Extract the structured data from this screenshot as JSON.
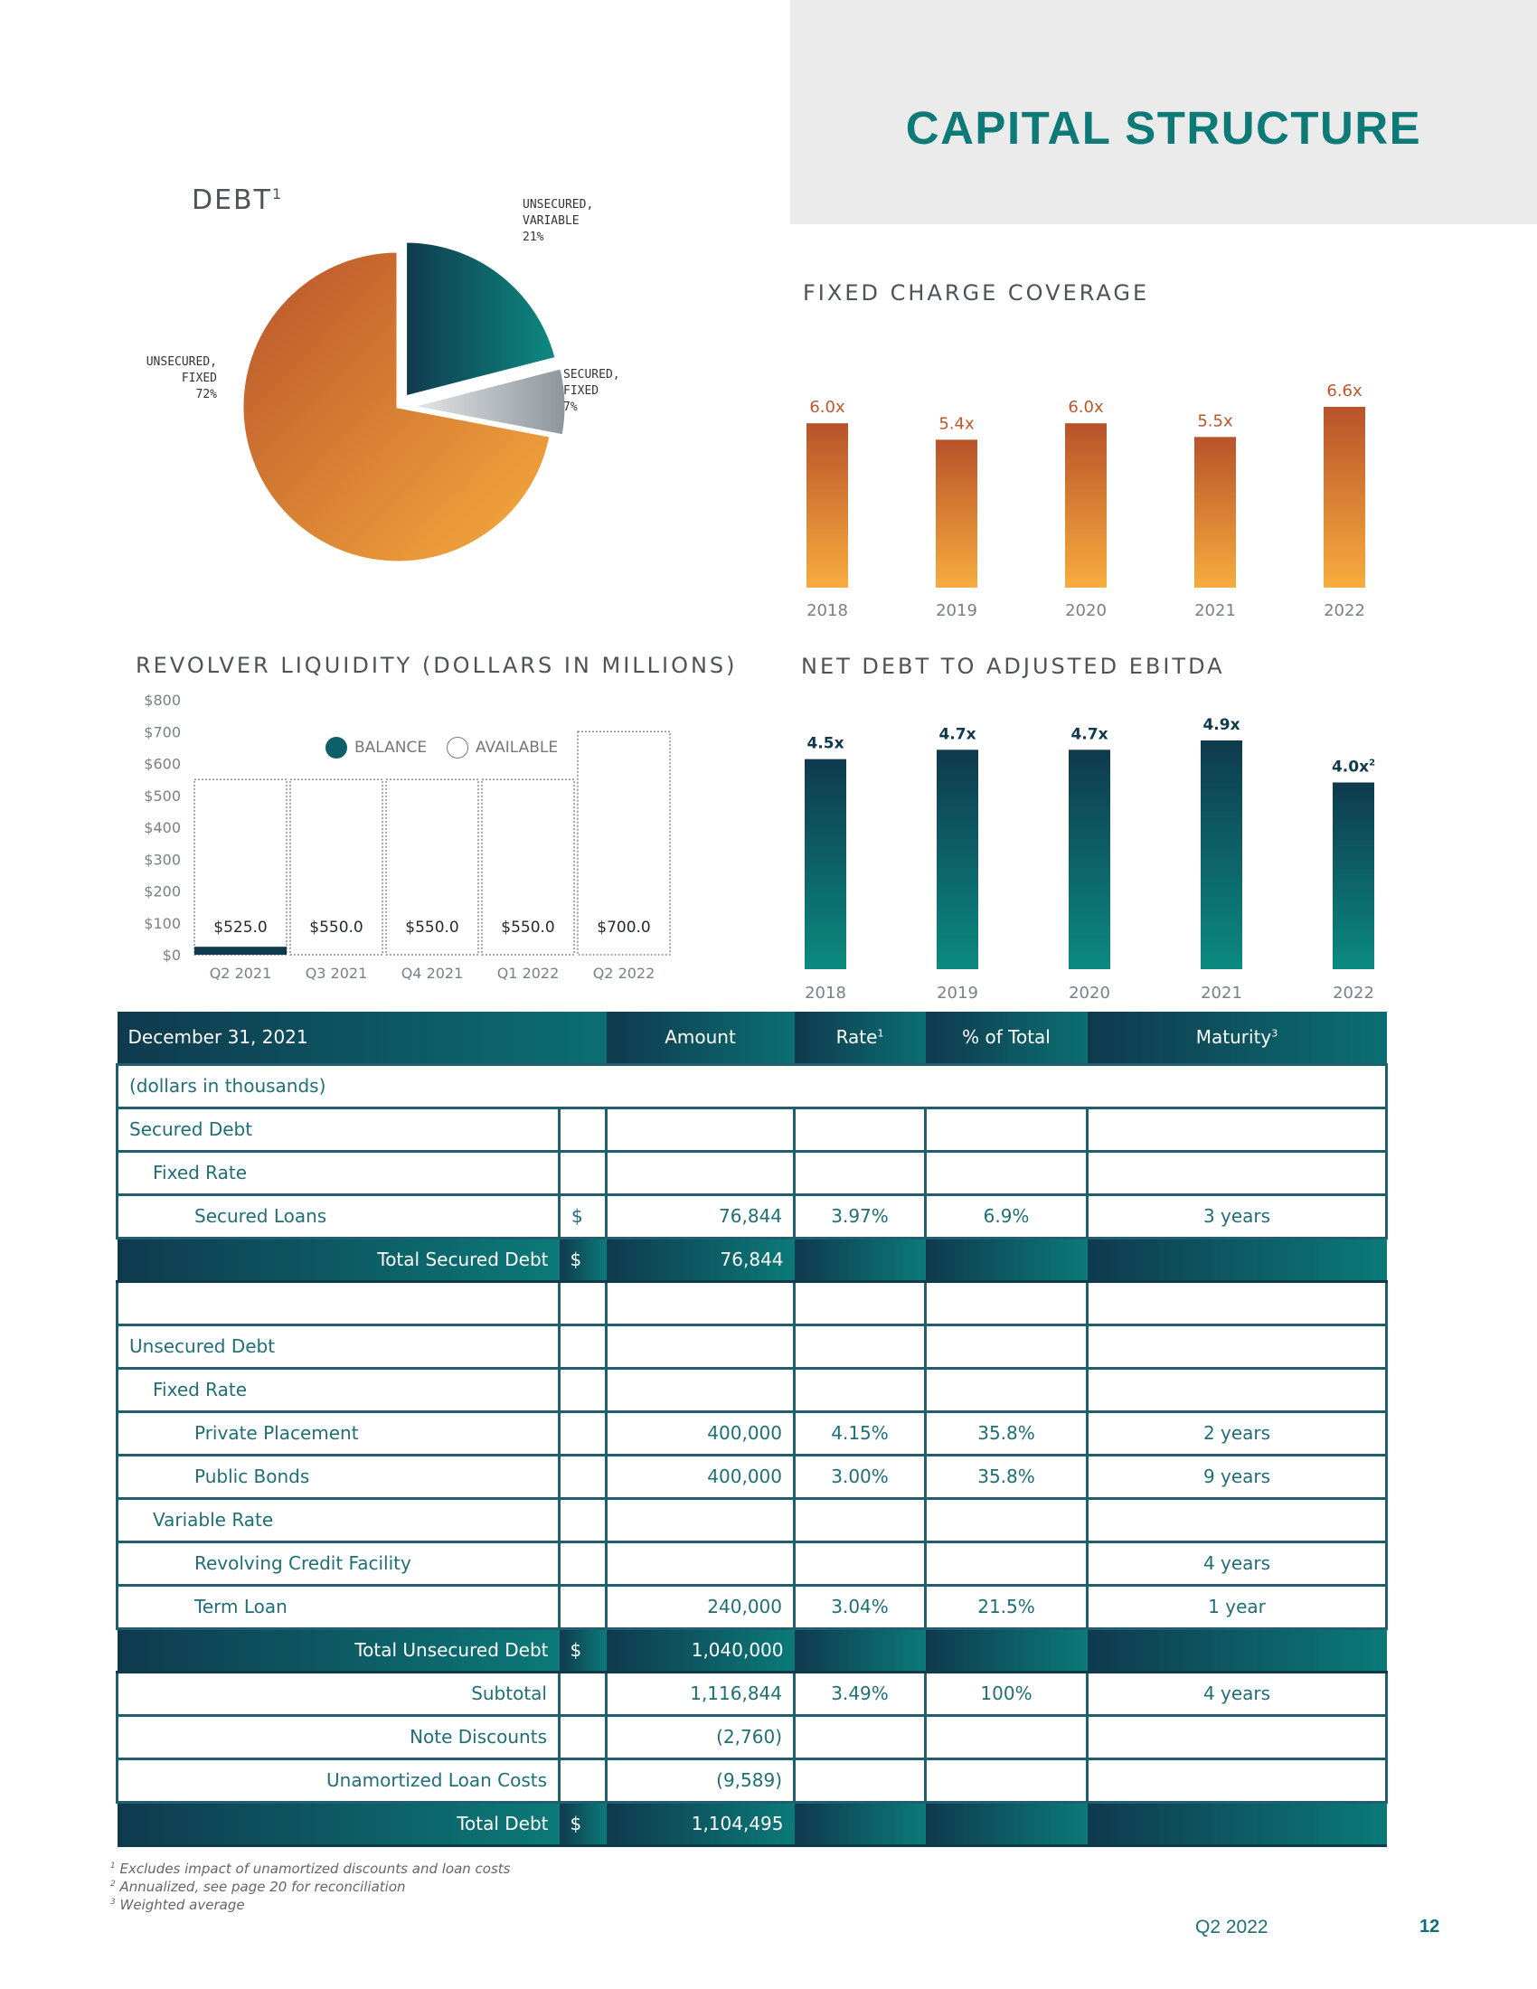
{
  "header": {
    "title": "CAPITAL STRUCTURE"
  },
  "debt_pie": {
    "title": "DEBT",
    "title_sup": "1",
    "slices": [
      {
        "line1": "UNSECURED,",
        "line2": "VARIABLE",
        "pct": "21%",
        "value": 21,
        "color_from": "#0f3a4e",
        "color_to": "#0e8a82"
      },
      {
        "line1": "SECURED,",
        "line2": "FIXED",
        "pct": "7%",
        "value": 7,
        "color_from": "#d9dbdd",
        "color_to": "#8c959b"
      },
      {
        "line1": "UNSECURED,",
        "line2": "FIXED",
        "pct": "72%",
        "value": 72,
        "color_from": "#b8532a",
        "color_to": "#f7ac3e"
      }
    ]
  },
  "fixed_charge": {
    "title": "FIXED CHARGE COVERAGE",
    "chart_data": {
      "type": "bar",
      "categories": [
        "2018",
        "2019",
        "2020",
        "2021",
        "2022"
      ],
      "values": [
        6.0,
        5.4,
        6.0,
        5.5,
        6.6
      ],
      "labels": [
        "6.0x",
        "5.4x",
        "6.0x",
        "5.5x",
        "6.6x"
      ],
      "ylim": [
        0,
        7
      ]
    }
  },
  "revolver": {
    "title": "REVOLVER LIQUIDITY (DOLLARS IN MILLIONS)",
    "legend": {
      "balance": "BALANCE",
      "available": "AVAILABLE"
    },
    "chart_data": {
      "type": "bar",
      "categories": [
        "Q2 2021",
        "Q3 2021",
        "Q4 2021",
        "Q1 2022",
        "Q2 2022"
      ],
      "series": [
        {
          "name": "BALANCE",
          "values": [
            25,
            0,
            0,
            0,
            0
          ]
        },
        {
          "name": "AVAILABLE",
          "values": [
            525,
            550,
            550,
            550,
            700
          ]
        }
      ],
      "labels": [
        "$525.0",
        "$550.0",
        "$550.0",
        "$550.0",
        "$700.0"
      ],
      "yticks": [
        "$0",
        "$100",
        "$200",
        "$300",
        "$400",
        "$500",
        "$600",
        "$700",
        "$800"
      ],
      "ylim": [
        0,
        800
      ]
    }
  },
  "net_debt": {
    "title": "NET DEBT TO ADJUSTED EBITDA",
    "chart_data": {
      "type": "bar",
      "categories": [
        "2018",
        "2019",
        "2020",
        "2021",
        "2022"
      ],
      "values": [
        4.5,
        4.7,
        4.7,
        4.9,
        4.0
      ],
      "labels": [
        "4.5x",
        "4.7x",
        "4.7x",
        "4.9x",
        "4.0x"
      ],
      "label_sups": [
        "",
        "",
        "",
        "",
        "2"
      ],
      "ylim": [
        0,
        5
      ]
    }
  },
  "table": {
    "headers": {
      "date": "December 31, 2021",
      "amount": "Amount",
      "rate": "Rate",
      "rate_sup": "1",
      "pct": "% of Total",
      "maturity": "Maturity",
      "maturity_sup": "3"
    },
    "units": "(dollars in thousands)",
    "secured_debt": "Secured Debt",
    "fixed_rate_1": "Fixed Rate",
    "secured_loans": {
      "label": "Secured Loans",
      "currency": "$",
      "amount": "76,844",
      "rate": "3.97%",
      "pct": "6.9%",
      "maturity": "3 years"
    },
    "total_secured": {
      "label": "Total Secured Debt",
      "currency": "$",
      "amount": "76,844"
    },
    "unsecured_debt": "Unsecured Debt",
    "fixed_rate_2": "Fixed Rate",
    "private_placement": {
      "label": "Private Placement",
      "amount": "400,000",
      "rate": "4.15%",
      "pct": "35.8%",
      "maturity": "2 years"
    },
    "public_bonds": {
      "label": "Public Bonds",
      "amount": "400,000",
      "rate": "3.00%",
      "pct": "35.8%",
      "maturity": "9 years"
    },
    "variable_rate": "Variable Rate",
    "revolving": {
      "label": "Revolving Credit Facility",
      "maturity": "4 years"
    },
    "term_loan": {
      "label": "Term Loan",
      "amount": "240,000",
      "rate": "3.04%",
      "pct": "21.5%",
      "maturity": "1 year"
    },
    "total_unsecured": {
      "label": "Total Unsecured Debt",
      "currency": "$",
      "amount": "1,040,000"
    },
    "subtotal": {
      "label": "Subtotal",
      "amount": "1,116,844",
      "rate": "3.49%",
      "pct": "100%",
      "maturity": "4 years"
    },
    "note_discounts": {
      "label": "Note Discounts",
      "amount": "(2,760)"
    },
    "unamortized": {
      "label": "Unamortized Loan Costs",
      "amount": "(9,589)"
    },
    "total_debt": {
      "label": "Total Debt",
      "currency": "$",
      "amount": "1,104,495"
    }
  },
  "footnotes": [
    {
      "num": "1",
      "text": "Excludes impact of unamortized discounts and loan costs"
    },
    {
      "num": "2",
      "text": "Annualized, see page 20 for reconciliation"
    },
    {
      "num": "3",
      "text": "Weighted average"
    }
  ],
  "footer": {
    "period": "Q2 2022",
    "page": "12"
  },
  "colors": {
    "teal": "#0e7a78",
    "navy": "#0f3a4e",
    "orange_dark": "#b8532a",
    "orange_light": "#f7ac3e"
  }
}
